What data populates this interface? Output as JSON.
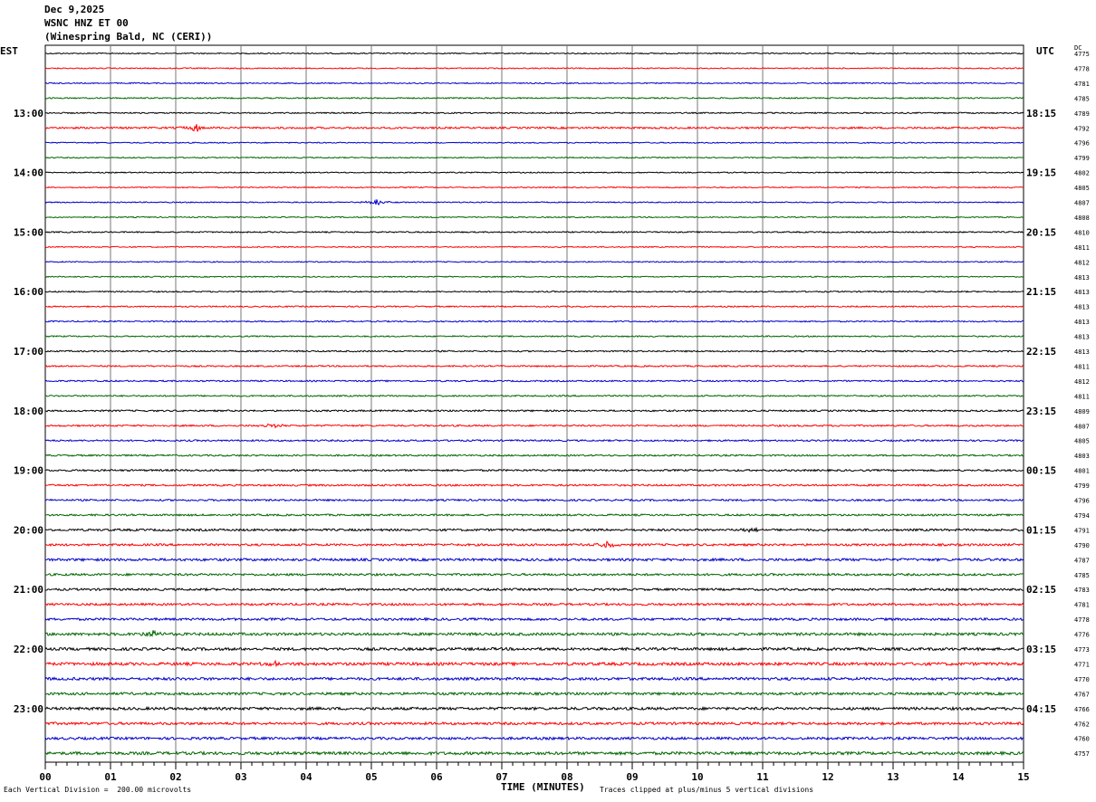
{
  "header": {
    "date": "Dec 9,2025",
    "station": "WSNC HNZ ET 00",
    "location": "(Winespring Bald, NC (CERI))"
  },
  "left_timezone": "EST",
  "right_timezone": "UTC",
  "dc_label": "DC",
  "footer": {
    "scale_note": "Each Vertical Division =  200.00 microvolts",
    "x_axis_title": "TIME (MINUTES)",
    "clip_note": "Traces clipped at plus/minus 5 vertical divisions"
  },
  "colors": {
    "cycle": [
      "#000000",
      "#ff0000",
      "#0000cc",
      "#006600"
    ],
    "grid": "#777777"
  },
  "chart_data": {
    "type": "line",
    "title": "",
    "xlabel": "TIME (MINUTES)",
    "xlim": [
      0,
      15
    ],
    "x_ticks": [
      "00",
      "01",
      "02",
      "03",
      "04",
      "05",
      "06",
      "07",
      "08",
      "09",
      "10",
      "11",
      "12",
      "13",
      "14",
      "15"
    ],
    "left_hour_labels": [
      "13:00",
      "14:00",
      "15:00",
      "16:00",
      "17:00",
      "18:00",
      "19:00",
      "20:00",
      "21:00",
      "22:00",
      "23:00"
    ],
    "right_hour_labels": [
      "18:15",
      "19:15",
      "20:15",
      "21:15",
      "22:15",
      "23:15",
      "00:15",
      "01:15",
      "02:15",
      "03:15",
      "04:15"
    ],
    "dc_offsets": [
      "4775",
      "4778",
      "4781",
      "4785",
      "4789",
      "4792",
      "4796",
      "4799",
      "4802",
      "4805",
      "4807",
      "4808",
      "4810",
      "4811",
      "4812",
      "4813",
      "4813",
      "4813",
      "4813",
      "4813",
      "4813",
      "4811",
      "4812",
      "4811",
      "4809",
      "4807",
      "4805",
      "4803",
      "4801",
      "4799",
      "4796",
      "4794",
      "4791",
      "4790",
      "4787",
      "4785",
      "4783",
      "4781",
      "4778",
      "4776",
      "4773",
      "4771",
      "4770",
      "4767",
      "4766",
      "4762",
      "4760",
      "4757"
    ],
    "trace_noise": [
      0.6,
      0.6,
      0.6,
      0.7,
      0.7,
      1.0,
      0.6,
      0.6,
      0.6,
      0.6,
      0.6,
      0.6,
      0.7,
      0.6,
      0.6,
      0.6,
      0.7,
      0.7,
      0.7,
      0.7,
      0.8,
      0.8,
      0.8,
      0.8,
      0.9,
      0.9,
      0.9,
      0.9,
      1.0,
      1.0,
      1.0,
      1.0,
      1.2,
      1.2,
      1.4,
      1.2,
      1.2,
      1.2,
      1.3,
      1.5,
      1.5,
      1.6,
      1.5,
      1.4,
      1.5,
      1.4,
      1.4,
      1.6
    ],
    "events": [
      {
        "trace": 5,
        "minute": 2.3,
        "amplitude": 5
      },
      {
        "trace": 10,
        "minute": 5.08,
        "amplitude": 4
      },
      {
        "trace": 25,
        "minute": 3.5,
        "amplitude": 3
      },
      {
        "trace": 32,
        "minute": 10.8,
        "amplitude": 3
      },
      {
        "trace": 33,
        "minute": 8.6,
        "amplitude": 4
      },
      {
        "trace": 39,
        "minute": 1.65,
        "amplitude": 5
      },
      {
        "trace": 41,
        "minute": 3.5,
        "amplitude": 3
      }
    ]
  }
}
